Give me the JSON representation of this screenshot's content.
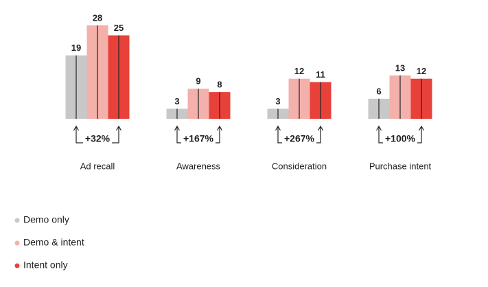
{
  "chart_data": {
    "type": "bar",
    "categories": [
      "Ad recall",
      "Awareness",
      "Consideration",
      "Purchase intent"
    ],
    "series": [
      {
        "name": "Demo only",
        "color": "#c8c8c8",
        "values": [
          19,
          3,
          3,
          6
        ]
      },
      {
        "name": "Demo & intent",
        "color": "#f4b0aa",
        "values": [
          28,
          9,
          12,
          13
        ]
      },
      {
        "name": "Intent only",
        "color": "#e8413a",
        "values": [
          25,
          8,
          11,
          12
        ]
      }
    ],
    "annotations": [
      "+32%",
      "+167%",
      "+267%",
      "+100%"
    ],
    "legend": "bottom-left"
  }
}
